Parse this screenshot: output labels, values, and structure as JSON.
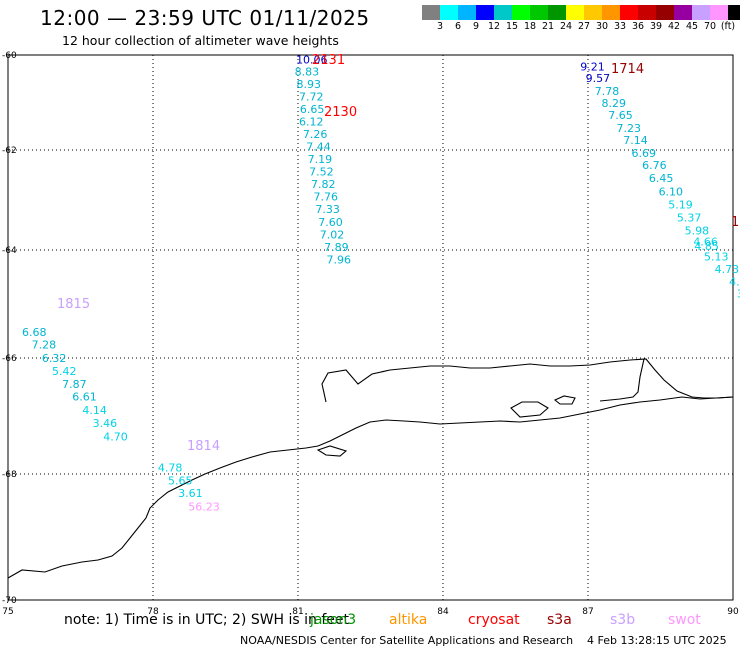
{
  "header": {
    "title": "12:00 — 23:59 UTC 01/11/2025",
    "subtitle": "12 hour collection of altimeter wave heights"
  },
  "colorbar": {
    "colors": [
      "#808080",
      "#00ffff",
      "#00b4ff",
      "#0000ff",
      "#00c8c8",
      "#00ff00",
      "#00c800",
      "#009600",
      "#ffff00",
      "#ffc800",
      "#ff9600",
      "#ff0000",
      "#c80000",
      "#960000",
      "#9600a0",
      "#c8a0ff",
      "#ff96ff",
      "#000000"
    ],
    "labels": [
      "3",
      "6",
      "9",
      "12",
      "15",
      "18",
      "21",
      "24",
      "27",
      "30",
      "33",
      "36",
      "39",
      "42",
      "45",
      "70",
      "(ft)"
    ]
  },
  "map": {
    "x_ticks": [
      "75",
      "78",
      "81",
      "84",
      "87",
      "90"
    ],
    "y_ticks": [
      "-60",
      "-62",
      "-64",
      "-66",
      "-68",
      "-70"
    ],
    "tracks": [
      {
        "time": "2131",
        "time_color": "#ff0000",
        "points": [
          {
            "lon": 80.96,
            "lat": -60.08,
            "v": "10.06",
            "c": "#0000c8"
          },
          {
            "lon": 80.93,
            "lat": -60.3,
            "v": "8.83",
            "c": "#00b4d2"
          },
          {
            "lon": 80.97,
            "lat": -60.53,
            "v": "8.93",
            "c": "#00b4d2"
          },
          {
            "lon": 81.02,
            "lat": -60.76,
            "v": "7.72",
            "c": "#00b4d2"
          },
          {
            "lon": 81.04,
            "lat": -60.99,
            "v": "6.65",
            "c": "#00b4d2"
          }
        ]
      },
      {
        "time": "2130",
        "time_color": "#ff0000",
        "points": [
          {
            "lon": 81.02,
            "lat": -61.22,
            "v": "6.12",
            "c": "#00b4d2"
          },
          {
            "lon": 81.1,
            "lat": -61.45,
            "v": "7.26",
            "c": "#00b4d2"
          },
          {
            "lon": 81.17,
            "lat": -61.68,
            "v": "7.44",
            "c": "#00b4d2"
          },
          {
            "lon": 81.2,
            "lat": -61.91,
            "v": "7.19",
            "c": "#00b4d2"
          },
          {
            "lon": 81.23,
            "lat": -62.14,
            "v": "7.52",
            "c": "#00b4d2"
          },
          {
            "lon": 81.27,
            "lat": -62.37,
            "v": "7.82",
            "c": "#00b4d2"
          },
          {
            "lon": 81.32,
            "lat": -62.6,
            "v": "7.76",
            "c": "#00b4d2"
          },
          {
            "lon": 81.36,
            "lat": -62.83,
            "v": "7.33",
            "c": "#00b4d2"
          },
          {
            "lon": 81.42,
            "lat": -63.06,
            "v": "7.60",
            "c": "#00b4d2"
          },
          {
            "lon": 81.45,
            "lat": -63.29,
            "v": "7.02",
            "c": "#00b4d2"
          },
          {
            "lon": 81.54,
            "lat": -63.52,
            "v": "7.89",
            "c": "#00b4d2"
          },
          {
            "lon": 81.59,
            "lat": -63.75,
            "v": "7.96",
            "c": "#00b4d2"
          }
        ]
      },
      {
        "time": "1714",
        "time_color": "#960000",
        "points": [
          {
            "lon": 86.84,
            "lat": -60.21,
            "v": "9.21",
            "c": "#0000c8"
          },
          {
            "lon": 86.95,
            "lat": -60.42,
            "v": "9.57",
            "c": "#0000c8"
          },
          {
            "lon": 87.14,
            "lat": -60.66,
            "v": "7.78",
            "c": "#00b4d2"
          },
          {
            "lon": 87.28,
            "lat": -60.88,
            "v": "8.29",
            "c": "#00b4d2"
          },
          {
            "lon": 87.42,
            "lat": -61.1,
            "v": "7.65",
            "c": "#00b4d2"
          },
          {
            "lon": 87.59,
            "lat": -61.34,
            "v": "7.23",
            "c": "#00b4d2"
          },
          {
            "lon": 87.73,
            "lat": -61.56,
            "v": "7.14",
            "c": "#00b4d2"
          },
          {
            "lon": 87.9,
            "lat": -61.8,
            "v": "6.69",
            "c": "#00b4d2"
          },
          {
            "lon": 88.12,
            "lat": -62.02,
            "v": "6.76",
            "c": "#00b4d2"
          },
          {
            "lon": 88.26,
            "lat": -62.26,
            "v": "6.45",
            "c": "#00b4d2"
          },
          {
            "lon": 88.46,
            "lat": -62.5,
            "v": "6.10",
            "c": "#00b4d2"
          },
          {
            "lon": 88.66,
            "lat": -62.74,
            "v": "5.19",
            "c": "#00d2e6"
          },
          {
            "lon": 88.84,
            "lat": -62.98,
            "v": "5.37",
            "c": "#00d2e6"
          },
          {
            "lon": 89.0,
            "lat": -63.22,
            "v": "5.98",
            "c": "#00d2e6"
          },
          {
            "lon": 89.18,
            "lat": -63.42,
            "v": "4.66",
            "c": "#00d2e6"
          },
          {
            "lon": 89.2,
            "lat": -63.5,
            "v": "4.85",
            "c": "#00d2e6"
          },
          {
            "lon": 89.4,
            "lat": -63.7,
            "v": "5.13",
            "c": "#00d2e6"
          },
          {
            "lon": 89.62,
            "lat": -63.93,
            "v": "4.73",
            "c": "#00d2e6"
          },
          {
            "lon": 89.92,
            "lat": -64.16,
            "v": "4.",
            "c": "#00d2e6"
          },
          {
            "lon": 90.08,
            "lat": -64.38,
            "v": "3",
            "c": "#00d2e6"
          }
        ]
      },
      {
        "time": "1",
        "time_color": "#960000",
        "points": []
      },
      {
        "time": "1815",
        "time_color": "#c8a0ff",
        "points": [
          {
            "lon": 75.29,
            "lat": -65.08,
            "v": "6.68",
            "c": "#00b4d2"
          },
          {
            "lon": 75.49,
            "lat": -65.31,
            "v": "7.28",
            "c": "#00b4d2"
          },
          {
            "lon": 75.7,
            "lat": -65.56,
            "v": "6.32",
            "c": "#00b4d2"
          },
          {
            "lon": 75.91,
            "lat": -65.8,
            "v": "5.42",
            "c": "#00d2e6"
          },
          {
            "lon": 76.12,
            "lat": -66.04,
            "v": "7.87",
            "c": "#00b4d2"
          },
          {
            "lon": 76.33,
            "lat": -66.27,
            "v": "6.61",
            "c": "#00b4d2"
          },
          {
            "lon": 76.54,
            "lat": -66.51,
            "v": "4.14",
            "c": "#00d2e6"
          },
          {
            "lon": 76.75,
            "lat": -66.75,
            "v": "3.46",
            "c": "#00d2e6"
          },
          {
            "lon": 76.97,
            "lat": -67.0,
            "v": "4.70",
            "c": "#00d2e6"
          }
        ]
      },
      {
        "time": "1814",
        "time_color": "#c8a0ff",
        "points": [
          {
            "lon": 78.1,
            "lat": -67.57,
            "v": "4.78",
            "c": "#00d2e6"
          },
          {
            "lon": 78.31,
            "lat": -67.81,
            "v": "5.65",
            "c": "#00d2e6"
          },
          {
            "lon": 78.52,
            "lat": -68.04,
            "v": "3.61",
            "c": "#00d2e6"
          },
          {
            "lon": 78.73,
            "lat": -68.28,
            "v": "56.23",
            "c": "#ff96ff"
          }
        ]
      }
    ]
  },
  "footer": {
    "note": "note:  1) Time is in UTC; 2) SWH is in feet",
    "satellites": [
      {
        "name": "jason3",
        "color": "#009600"
      },
      {
        "name": "altika",
        "color": "#ff9600"
      },
      {
        "name": "cryosat",
        "color": "#ff0000"
      },
      {
        "name": "s3a",
        "color": "#960000"
      },
      {
        "name": "s3b",
        "color": "#c8a0ff"
      },
      {
        "name": "swot",
        "color": "#ff96ff"
      }
    ],
    "credit": "NOAA/NESDIS Center for Satellite Applications and Research",
    "timestamp": "4 Feb 13:28:15 UTC 2025"
  }
}
